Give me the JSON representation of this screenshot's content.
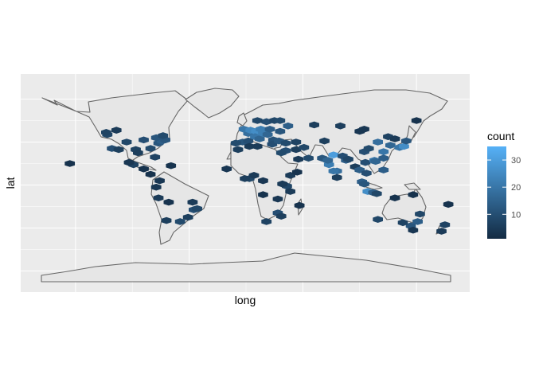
{
  "chart_data": {
    "type": "heatmap",
    "subtype": "hexbin over world map",
    "xlabel": "long",
    "ylabel": "lat",
    "xlim": [
      -180,
      180
    ],
    "ylim": [
      -90,
      90
    ],
    "x_tick_labels": [],
    "y_tick_labels": [],
    "grid": true,
    "background": "#ebebeb",
    "land_fill": "#e6e6e6",
    "coast_color": "#666666",
    "legend": {
      "title": "count",
      "placement": "right",
      "ticks": [
        10,
        20,
        30
      ],
      "tick_labels": [
        "10",
        "20",
        "30"
      ],
      "range": [
        1,
        35
      ],
      "color_low": "#132b43",
      "color_high": "#56b1f7"
    },
    "points": [
      {
        "x": -122,
        "y": 47,
        "v": 8
      },
      {
        "x": -118,
        "y": 34,
        "v": 10
      },
      {
        "x": -112,
        "y": 33,
        "v": 6
      },
      {
        "x": -105,
        "y": 40,
        "v": 8
      },
      {
        "x": -97,
        "y": 33,
        "v": 7
      },
      {
        "x": -95,
        "y": 30,
        "v": 6
      },
      {
        "x": -90,
        "y": 42,
        "v": 10
      },
      {
        "x": -84,
        "y": 34,
        "v": 9
      },
      {
        "x": -80,
        "y": 26,
        "v": 7
      },
      {
        "x": -77,
        "y": 39,
        "v": 12
      },
      {
        "x": -74,
        "y": 41,
        "v": 14
      },
      {
        "x": -71,
        "y": 42,
        "v": 12
      },
      {
        "x": -79,
        "y": 44,
        "v": 12
      },
      {
        "x": -73,
        "y": 46,
        "v": 9
      },
      {
        "x": -114,
        "y": 51,
        "v": 5
      },
      {
        "x": -123,
        "y": 49,
        "v": 7
      },
      {
        "x": -99,
        "y": 19,
        "v": 7
      },
      {
        "x": -103,
        "y": 21,
        "v": 4
      },
      {
        "x": -90,
        "y": 15,
        "v": 3
      },
      {
        "x": -84,
        "y": 10,
        "v": 3
      },
      {
        "x": -76,
        "y": 4,
        "v": 4
      },
      {
        "x": -79,
        "y": -2,
        "v": 4
      },
      {
        "x": -77,
        "y": -12,
        "v": 5
      },
      {
        "x": -47,
        "y": -16,
        "v": 5
      },
      {
        "x": -46,
        "y": -23,
        "v": 10
      },
      {
        "x": -43,
        "y": -22,
        "v": 8
      },
      {
        "x": -58,
        "y": -34,
        "v": 9
      },
      {
        "x": -70,
        "y": -33,
        "v": 6
      },
      {
        "x": -68,
        "y": -16,
        "v": 3
      },
      {
        "x": -51,
        "y": -30,
        "v": 6
      },
      {
        "x": -155,
        "y": 20,
        "v": 3
      },
      {
        "x": -66,
        "y": 18,
        "v": 3
      },
      {
        "x": -3,
        "y": 40,
        "v": 12
      },
      {
        "x": -9,
        "y": 39,
        "v": 9
      },
      {
        "x": 2,
        "y": 41,
        "v": 10
      },
      {
        "x": 2,
        "y": 48,
        "v": 18
      },
      {
        "x": -2,
        "y": 52,
        "v": 20
      },
      {
        "x": 4,
        "y": 51,
        "v": 24
      },
      {
        "x": 9,
        "y": 50,
        "v": 26
      },
      {
        "x": 13,
        "y": 52,
        "v": 22
      },
      {
        "x": 8,
        "y": 45,
        "v": 20
      },
      {
        "x": 12,
        "y": 43,
        "v": 16
      },
      {
        "x": 15,
        "y": 48,
        "v": 22
      },
      {
        "x": 19,
        "y": 47,
        "v": 16
      },
      {
        "x": 21,
        "y": 52,
        "v": 14
      },
      {
        "x": 24,
        "y": 42,
        "v": 11
      },
      {
        "x": 23,
        "y": 38,
        "v": 10
      },
      {
        "x": 18,
        "y": 59,
        "v": 10
      },
      {
        "x": 10,
        "y": 60,
        "v": 8
      },
      {
        "x": 25,
        "y": 60,
        "v": 8
      },
      {
        "x": 30,
        "y": 50,
        "v": 12
      },
      {
        "x": 37,
        "y": 55,
        "v": 14
      },
      {
        "x": 30,
        "y": 60,
        "v": 9
      },
      {
        "x": 29,
        "y": 41,
        "v": 12
      },
      {
        "x": 35,
        "y": 39,
        "v": 9
      },
      {
        "x": 44,
        "y": 40,
        "v": 7
      },
      {
        "x": 35,
        "y": 32,
        "v": 10
      },
      {
        "x": 44,
        "y": 33,
        "v": 6
      },
      {
        "x": 51,
        "y": 35,
        "v": 8
      },
      {
        "x": 55,
        "y": 25,
        "v": 9
      },
      {
        "x": 46,
        "y": 24,
        "v": 5
      },
      {
        "x": 31,
        "y": 30,
        "v": 9
      },
      {
        "x": 3,
        "y": 36,
        "v": 5
      },
      {
        "x": -7,
        "y": 33,
        "v": 6
      },
      {
        "x": 10,
        "y": 36,
        "v": 5
      },
      {
        "x": 39,
        "y": 9,
        "v": 5
      },
      {
        "x": 36,
        "y": -1,
        "v": 8
      },
      {
        "x": 32,
        "y": 1,
        "v": 5
      },
      {
        "x": 3,
        "y": 6,
        "v": 8
      },
      {
        "x": -1,
        "y": 6,
        "v": 6
      },
      {
        "x": -17,
        "y": 15,
        "v": 4
      },
      {
        "x": 7,
        "y": 9,
        "v": 5
      },
      {
        "x": 15,
        "y": 4,
        "v": 4
      },
      {
        "x": 28,
        "y": -26,
        "v": 10
      },
      {
        "x": 18,
        "y": -34,
        "v": 7
      },
      {
        "x": 31,
        "y": -29,
        "v": 6
      },
      {
        "x": 39,
        "y": -6,
        "v": 5
      },
      {
        "x": 28,
        "y": -13,
        "v": 4
      },
      {
        "x": 47,
        "y": -19,
        "v": 3
      },
      {
        "x": 15,
        "y": -9,
        "v": 3
      },
      {
        "x": 45,
        "y": 12,
        "v": 3
      },
      {
        "x": 69,
        "y": 41,
        "v": 6
      },
      {
        "x": 67,
        "y": 25,
        "v": 12
      },
      {
        "x": 73,
        "y": 19,
        "v": 22
      },
      {
        "x": 77,
        "y": 28,
        "v": 30
      },
      {
        "x": 72,
        "y": 23,
        "v": 16
      },
      {
        "x": 80,
        "y": 13,
        "v": 18
      },
      {
        "x": 77,
        "y": 13,
        "v": 20
      },
      {
        "x": 88,
        "y": 23,
        "v": 14
      },
      {
        "x": 85,
        "y": 27,
        "v": 10
      },
      {
        "x": 80,
        "y": 7,
        "v": 6
      },
      {
        "x": 90,
        "y": 24,
        "v": 8
      },
      {
        "x": 96,
        "y": 17,
        "v": 6
      },
      {
        "x": 100,
        "y": 14,
        "v": 14
      },
      {
        "x": 106,
        "y": 11,
        "v": 10
      },
      {
        "x": 105,
        "y": 21,
        "v": 10
      },
      {
        "x": 102,
        "y": 3,
        "v": 14
      },
      {
        "x": 104,
        "y": 1,
        "v": 12
      },
      {
        "x": 107,
        "y": -6,
        "v": 26
      },
      {
        "x": 112,
        "y": -7,
        "v": 14
      },
      {
        "x": 115,
        "y": -8,
        "v": 8
      },
      {
        "x": 121,
        "y": 14,
        "v": 14
      },
      {
        "x": 116,
        "y": 40,
        "v": 18
      },
      {
        "x": 121,
        "y": 31,
        "v": 20
      },
      {
        "x": 113,
        "y": 23,
        "v": 20
      },
      {
        "x": 104,
        "y": 31,
        "v": 10
      },
      {
        "x": 108,
        "y": 34,
        "v": 9
      },
      {
        "x": 114,
        "y": 22,
        "v": 16
      },
      {
        "x": 127,
        "y": 37,
        "v": 16
      },
      {
        "x": 135,
        "y": 35,
        "v": 20
      },
      {
        "x": 139,
        "y": 36,
        "v": 26
      },
      {
        "x": 141,
        "y": 41,
        "v": 12
      },
      {
        "x": 121,
        "y": 25,
        "v": 14
      },
      {
        "x": 125,
        "y": 45,
        "v": 7
      },
      {
        "x": 100,
        "y": 50,
        "v": 4
      },
      {
        "x": 83,
        "y": 55,
        "v": 6
      },
      {
        "x": 60,
        "y": 56,
        "v": 6
      },
      {
        "x": 104,
        "y": 52,
        "v": 4
      },
      {
        "x": 131,
        "y": 43,
        "v": 5
      },
      {
        "x": 150,
        "y": 60,
        "v": 3
      },
      {
        "x": 145,
        "y": -38,
        "v": 12
      },
      {
        "x": 151,
        "y": -34,
        "v": 14
      },
      {
        "x": 153,
        "y": -27,
        "v": 8
      },
      {
        "x": 138,
        "y": -35,
        "v": 7
      },
      {
        "x": 116,
        "y": -32,
        "v": 8
      },
      {
        "x": 147,
        "y": -42,
        "v": 4
      },
      {
        "x": 131,
        "y": -12,
        "v": 3
      },
      {
        "x": 175,
        "y": -37,
        "v": 7
      },
      {
        "x": 172,
        "y": -43,
        "v": 5
      },
      {
        "x": 147,
        "y": -9,
        "v": 3
      },
      {
        "x": 178,
        "y": -18,
        "v": 3
      }
    ]
  }
}
